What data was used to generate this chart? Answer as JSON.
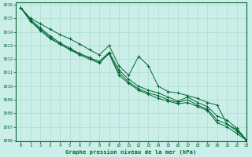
{
  "xlabel": "Graphe pression niveau de la mer (hPa)",
  "background_color": "#cceee8",
  "grid_color": "#aaddcc",
  "line_color": "#006633",
  "marker_color": "#006633",
  "xlim": [
    -0.5,
    23
  ],
  "ylim": [
    1006,
    1016
  ],
  "yticks": [
    1006,
    1007,
    1008,
    1009,
    1010,
    1011,
    1012,
    1013,
    1014,
    1015,
    1016
  ],
  "xticks": [
    0,
    1,
    2,
    3,
    4,
    5,
    6,
    7,
    8,
    9,
    10,
    11,
    12,
    13,
    14,
    15,
    16,
    17,
    18,
    19,
    20,
    21,
    22,
    23
  ],
  "series": [
    [
      1015.8,
      1015.0,
      1014.6,
      1014.2,
      1013.8,
      1013.5,
      1013.1,
      1012.7,
      1012.3,
      1013.0,
      1011.5,
      1010.8,
      1012.2,
      1011.5,
      1010.0,
      1009.6,
      1009.5,
      1009.3,
      1009.1,
      1008.8,
      1008.6,
      1007.2,
      1006.8,
      1006.0
    ],
    [
      1015.8,
      1014.9,
      1014.3,
      1013.7,
      1013.2,
      1012.8,
      1012.4,
      1012.1,
      1011.8,
      1012.5,
      1011.2,
      1010.5,
      1010.0,
      1009.7,
      1009.5,
      1009.2,
      1008.9,
      1009.2,
      1008.8,
      1008.5,
      1007.8,
      1007.5,
      1006.9,
      1006.0
    ],
    [
      1015.8,
      1014.8,
      1014.2,
      1013.6,
      1013.1,
      1012.7,
      1012.4,
      1012.1,
      1011.8,
      1012.4,
      1011.0,
      1010.3,
      1009.8,
      1009.5,
      1009.3,
      1009.0,
      1008.8,
      1009.0,
      1008.6,
      1008.3,
      1007.5,
      1007.2,
      1006.7,
      1006.0
    ],
    [
      1015.8,
      1014.8,
      1014.1,
      1013.5,
      1013.1,
      1012.7,
      1012.3,
      1012.0,
      1011.7,
      1012.4,
      1010.8,
      1010.2,
      1009.7,
      1009.4,
      1009.1,
      1008.9,
      1008.7,
      1008.8,
      1008.5,
      1008.2,
      1007.3,
      1007.0,
      1006.5,
      1006.0
    ]
  ]
}
